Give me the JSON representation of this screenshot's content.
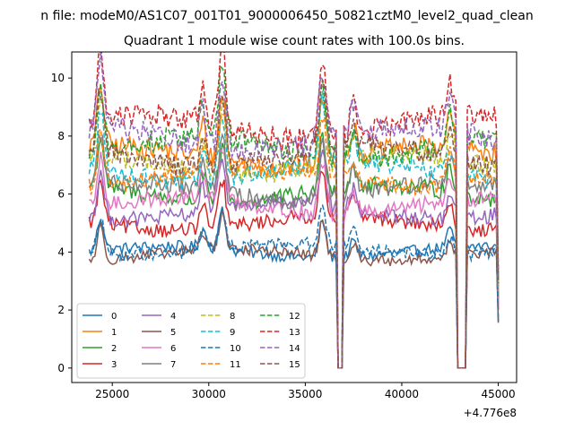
{
  "chart_data": {
    "type": "line",
    "suptitle": "n file: modeM0/AS1C07_001T01_9000006450_50821cztM0_level2_quad_clean",
    "title": "Quadrant 1 module wise count rates with 100.0s bins.",
    "xlabel": "",
    "ylabel": "",
    "x_offset_label": "+4.776e8",
    "xlim": [
      22900,
      45950
    ],
    "ylim": [
      -0.5,
      10.9
    ],
    "xticks": [
      25000,
      30000,
      35000,
      40000,
      45000
    ],
    "xtick_labels": [
      "25000",
      "30000",
      "35000",
      "40000",
      "45000"
    ],
    "yticks": [
      0,
      2,
      4,
      6,
      8,
      10
    ],
    "ytick_labels": [
      "0",
      "2",
      "4",
      "6",
      "8",
      "10"
    ],
    "x_range": [
      23800,
      45000
    ],
    "x_step": 100,
    "legend_position": "lower-left",
    "legend_columns": 4,
    "gaps": [
      [
        36700,
        36950
      ],
      [
        42900,
        43300
      ]
    ],
    "series": [
      {
        "name": "0",
        "color": "#1f77b4",
        "style": "solid",
        "base": 4.0
      },
      {
        "name": "1",
        "color": "#ff7f0e",
        "style": "solid",
        "base": 7.3
      },
      {
        "name": "2",
        "color": "#2ca02c",
        "style": "solid",
        "base": 6.0
      },
      {
        "name": "3",
        "color": "#d62728",
        "style": "solid",
        "base": 5.0
      },
      {
        "name": "4",
        "color": "#9467bd",
        "style": "solid",
        "base": 5.4
      },
      {
        "name": "5",
        "color": "#8c564b",
        "style": "solid",
        "base": 3.9
      },
      {
        "name": "6",
        "color": "#e377c2",
        "style": "solid",
        "base": 5.6
      },
      {
        "name": "7",
        "color": "#7f7f7f",
        "style": "solid",
        "base": 6.1
      },
      {
        "name": "8",
        "color": "#bcbd22",
        "style": "dashed",
        "base": 7.0
      },
      {
        "name": "9",
        "color": "#17becf",
        "style": "dashed",
        "base": 6.8
      },
      {
        "name": "10",
        "color": "#1f77b4",
        "style": "dashed",
        "base": 4.1
      },
      {
        "name": "11",
        "color": "#ff7f0e",
        "style": "dashed",
        "base": 6.6
      },
      {
        "name": "12",
        "color": "#2ca02c",
        "style": "dashed",
        "base": 7.6
      },
      {
        "name": "13",
        "color": "#d62728",
        "style": "dashed",
        "base": 8.3
      },
      {
        "name": "14",
        "color": "#9467bd",
        "style": "dashed",
        "base": 7.9
      },
      {
        "name": "15",
        "color": "#8c564b",
        "style": "dashed",
        "base": 7.3
      }
    ],
    "flare_peaks": [
      {
        "x": 24400,
        "amp": 2.0
      },
      {
        "x": 29700,
        "amp": 1.1
      },
      {
        "x": 30700,
        "amp": 2.3
      },
      {
        "x": 35900,
        "amp": 2.2
      },
      {
        "x": 37500,
        "amp": 0.9
      },
      {
        "x": 42500,
        "amp": 1.0
      }
    ]
  }
}
